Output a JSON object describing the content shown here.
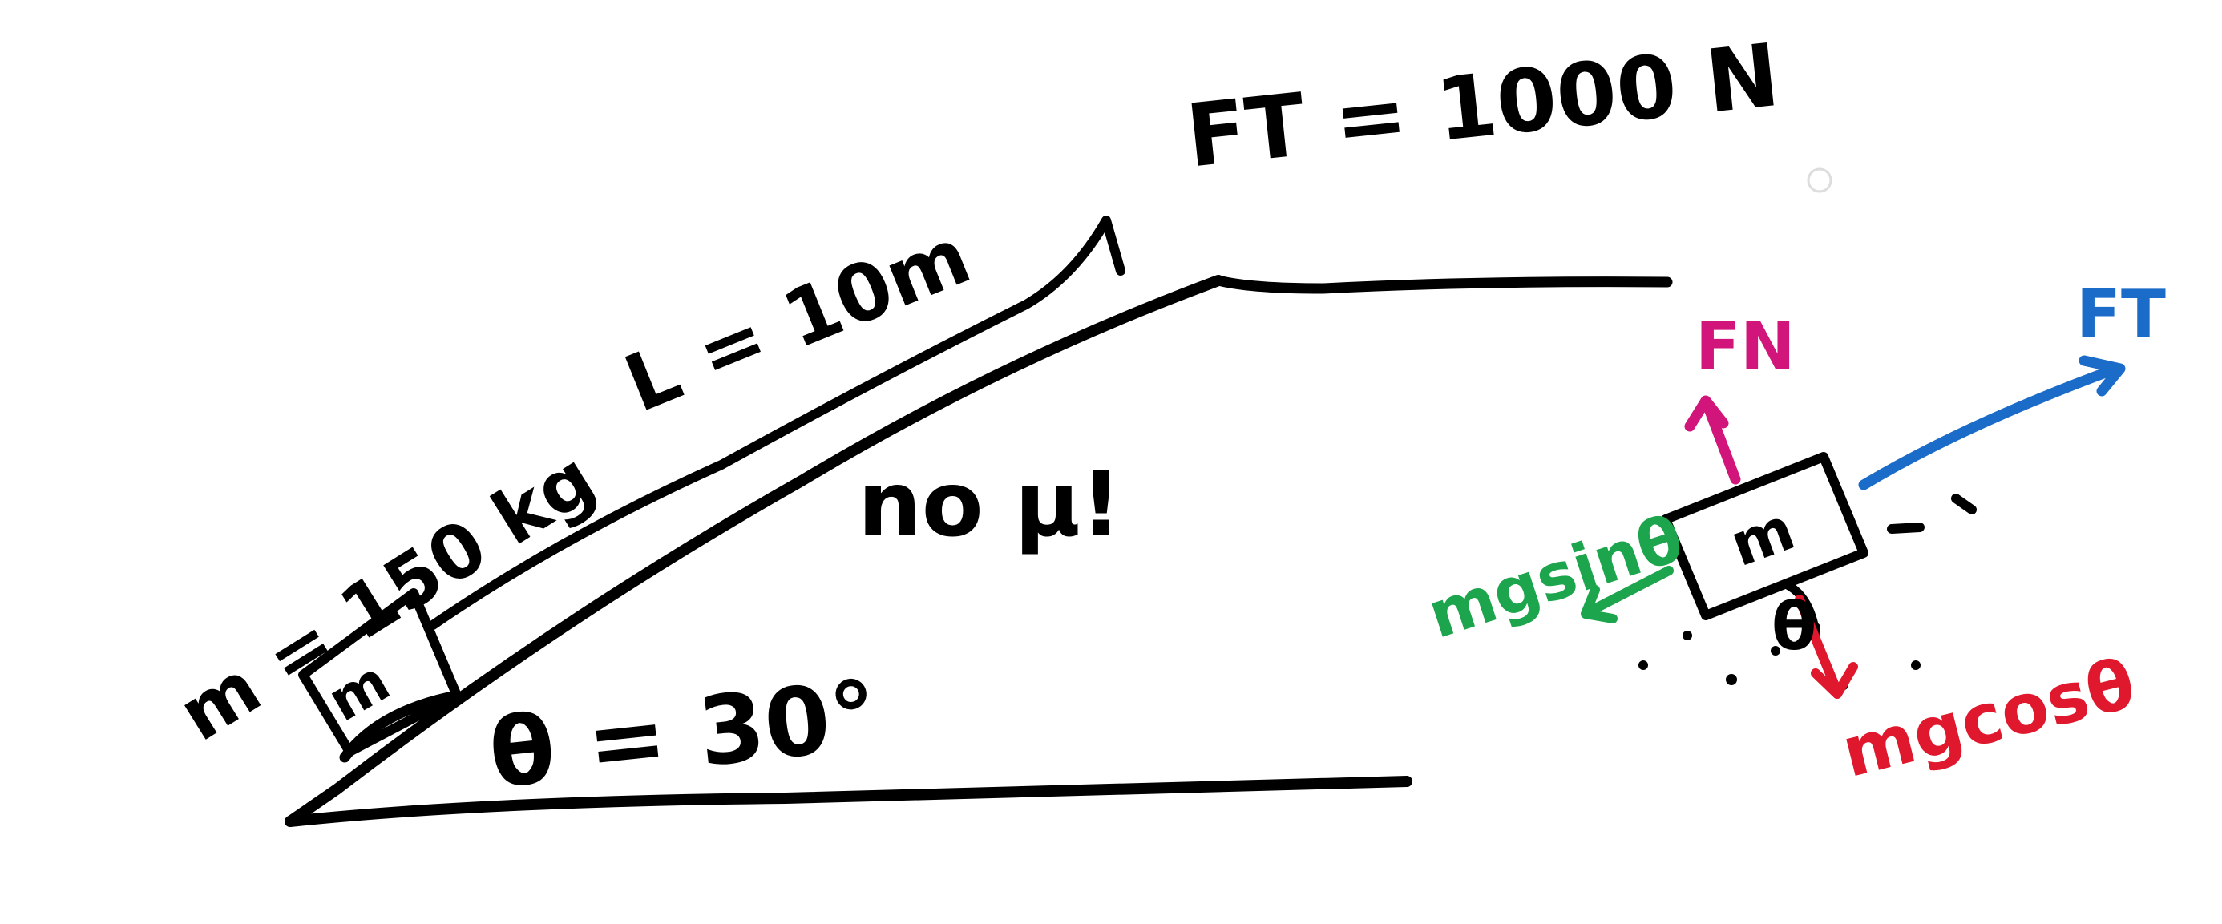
{
  "colors": {
    "ink": "#000000",
    "normal_force": "#d1157a",
    "tension_force": "#1a6cc8",
    "parallel_component": "#1ca54c",
    "perpendicular_component": "#e0182d",
    "background": "#ffffff"
  },
  "labels": {
    "tension": "FT = 1000 N",
    "length": "L = 10m",
    "mass": "m = 150 kg",
    "no_friction": "no μ!",
    "angle": "θ = 30°",
    "block_incline": "m",
    "block_fbd": "m",
    "fbd_angle": "θ",
    "fbd_normal": "FN",
    "fbd_tension": "FT",
    "fbd_parallel": "mgsinθ",
    "fbd_perpendicular": "mgcosθ"
  },
  "icons": {
    "cursor_dot": "faint-circle-marker"
  }
}
